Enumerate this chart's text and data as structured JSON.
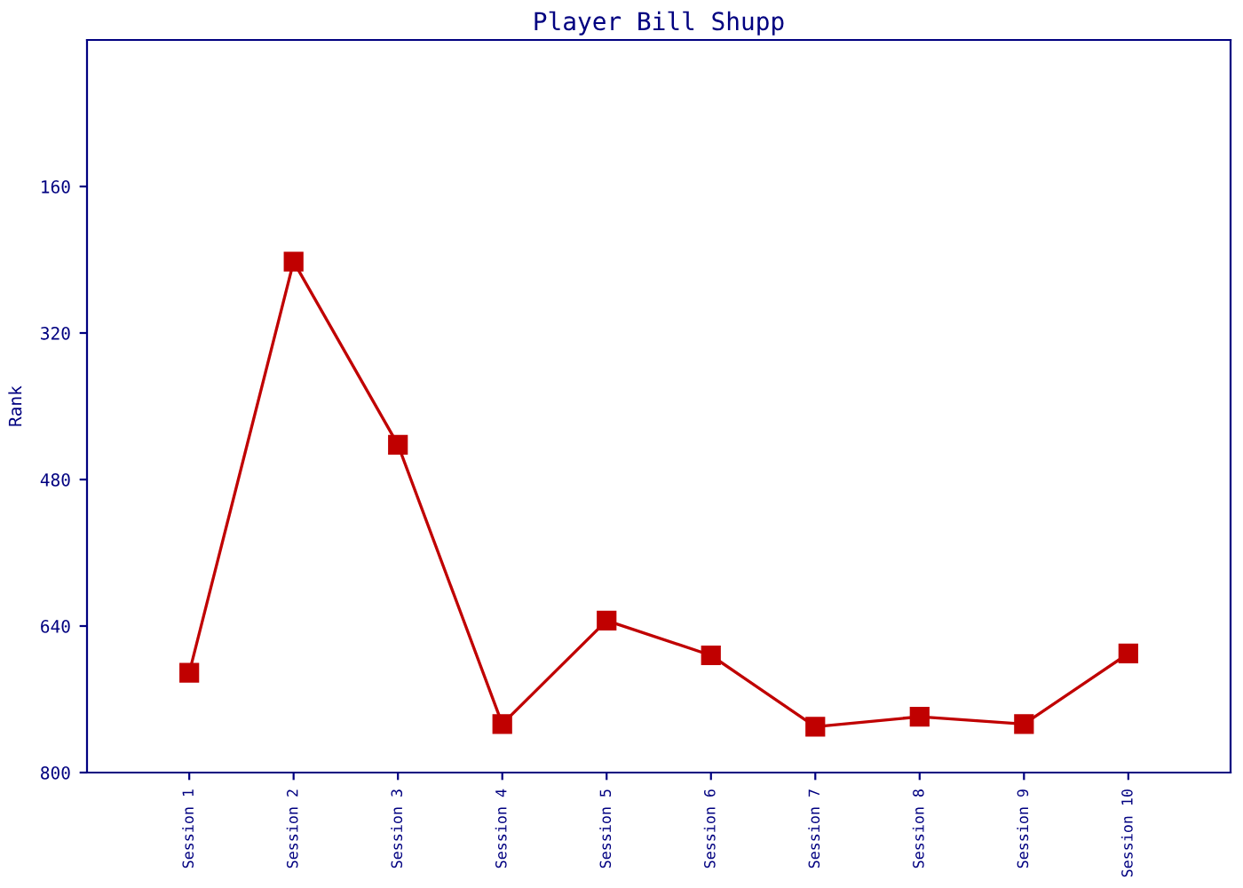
{
  "chart_data": {
    "type": "line",
    "title": "Player Bill Shupp",
    "ylabel": "Rank",
    "categories": [
      "Session 1",
      "Session 2",
      "Session 3",
      "Session 4",
      "Session 5",
      "Session 6",
      "Session 7",
      "Session 8",
      "Session 9",
      "Session 10"
    ],
    "series": [
      {
        "color": "#c00000",
        "values": [
          691,
          242,
          442,
          747,
          634,
          672,
          750,
          739,
          747,
          670
        ]
      }
    ],
    "ylim": [
      800,
      0
    ],
    "yticks": [
      160,
      320,
      480,
      640,
      800
    ],
    "marker": "square",
    "line_style": "solid",
    "grid": false
  }
}
